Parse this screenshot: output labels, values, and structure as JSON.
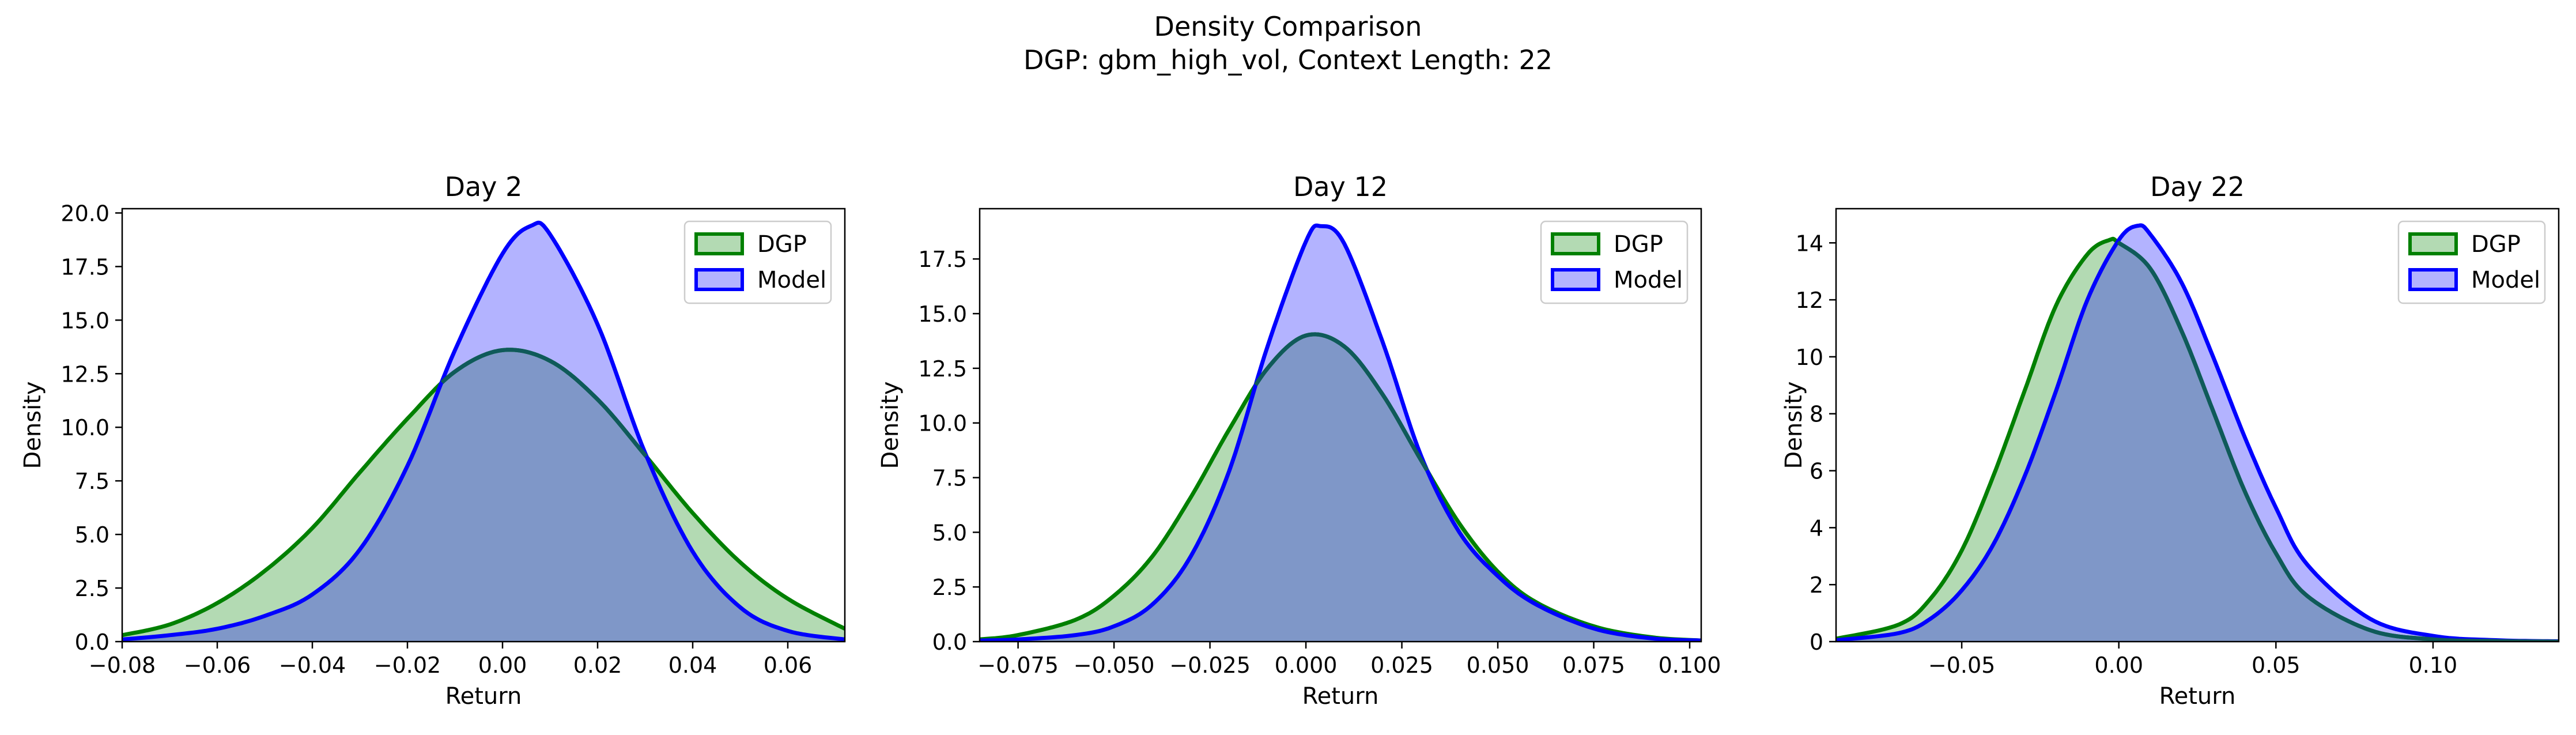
{
  "figure": {
    "title_line1": "Density Comparison",
    "title_line2": "DGP: gbm_high_vol, Context Length: 22"
  },
  "colors": {
    "dgp_line": "#008000",
    "dgp_fill": "#b3dab3",
    "model_line": "#0000ff",
    "model_fill": "#b3b3ff",
    "overlap_fill": "#7f97c8"
  },
  "chart_data": [
    {
      "type": "area",
      "title": "Day 2",
      "xlabel": "Return",
      "ylabel": "Density",
      "xlim": [
        -0.08,
        0.072
      ],
      "ylim": [
        0,
        20.2
      ],
      "xticks": [
        -0.08,
        -0.06,
        -0.04,
        -0.02,
        0.0,
        0.02,
        0.04,
        0.06
      ],
      "xtick_labels": [
        "−0.08",
        "−0.06",
        "−0.04",
        "−0.02",
        "0.00",
        "0.02",
        "0.04",
        "0.06"
      ],
      "yticks": [
        0,
        2.5,
        5,
        7.5,
        10,
        12.5,
        15,
        17.5,
        20
      ],
      "ytick_labels": [
        "0.0",
        "2.5",
        "5.0",
        "7.5",
        "10.0",
        "12.5",
        "15.0",
        "17.5",
        "20.0"
      ],
      "legend": "top-right",
      "series": [
        {
          "name": "DGP",
          "x": [
            -0.08,
            -0.07,
            -0.06,
            -0.05,
            -0.04,
            -0.03,
            -0.02,
            -0.01,
            0.0,
            0.01,
            0.02,
            0.03,
            0.04,
            0.05,
            0.06,
            0.072
          ],
          "y": [
            0.3,
            0.8,
            1.8,
            3.3,
            5.3,
            7.9,
            10.4,
            12.6,
            13.6,
            13.1,
            11.3,
            8.7,
            6.0,
            3.7,
            2.0,
            0.6
          ]
        },
        {
          "name": "Model",
          "x": [
            -0.08,
            -0.07,
            -0.06,
            -0.05,
            -0.04,
            -0.03,
            -0.02,
            -0.01,
            0.0,
            0.006,
            0.01,
            0.02,
            0.03,
            0.04,
            0.05,
            0.06,
            0.072
          ],
          "y": [
            0.1,
            0.3,
            0.6,
            1.2,
            2.2,
            4.3,
            8.2,
            13.6,
            18.1,
            19.4,
            19.0,
            14.8,
            8.8,
            4.2,
            1.6,
            0.5,
            0.1
          ]
        }
      ]
    },
    {
      "type": "area",
      "title": "Day 12",
      "xlabel": "Return",
      "ylabel": "Density",
      "xlim": [
        -0.085,
        0.103
      ],
      "ylim": [
        0,
        19.8
      ],
      "xticks": [
        -0.075,
        -0.05,
        -0.025,
        0.0,
        0.025,
        0.05,
        0.075,
        0.1
      ],
      "xtick_labels": [
        "−0.075",
        "−0.050",
        "−0.025",
        "0.000",
        "0.025",
        "0.050",
        "0.075",
        "0.100"
      ],
      "yticks": [
        0,
        2.5,
        5,
        7.5,
        10,
        12.5,
        15,
        17.5
      ],
      "ytick_labels": [
        "0.0",
        "2.5",
        "5.0",
        "7.5",
        "10.0",
        "12.5",
        "15.0",
        "17.5"
      ],
      "legend": "top-right",
      "series": [
        {
          "name": "DGP",
          "x": [
            -0.085,
            -0.075,
            -0.06,
            -0.05,
            -0.04,
            -0.03,
            -0.02,
            -0.01,
            0.0,
            0.01,
            0.02,
            0.03,
            0.04,
            0.05,
            0.06,
            0.075,
            0.09,
            0.103
          ],
          "y": [
            0.1,
            0.3,
            1.0,
            2.1,
            3.9,
            6.6,
            9.7,
            12.5,
            14.0,
            13.5,
            11.3,
            8.3,
            5.4,
            3.2,
            1.8,
            0.7,
            0.2,
            0.05
          ]
        },
        {
          "name": "Model",
          "x": [
            -0.085,
            -0.075,
            -0.06,
            -0.05,
            -0.04,
            -0.03,
            -0.02,
            -0.01,
            0.0,
            0.004,
            0.01,
            0.02,
            0.03,
            0.04,
            0.05,
            0.06,
            0.075,
            0.09,
            0.103
          ],
          "y": [
            0.05,
            0.1,
            0.3,
            0.7,
            1.7,
            3.9,
            7.8,
            13.5,
            18.3,
            19.0,
            18.2,
            13.7,
            8.5,
            5.0,
            3.0,
            1.7,
            0.6,
            0.15,
            0.05
          ]
        }
      ]
    },
    {
      "type": "area",
      "title": "Day 22",
      "xlabel": "Return",
      "ylabel": "Density",
      "xlim": [
        -0.09,
        0.14
      ],
      "ylim": [
        0,
        15.2
      ],
      "xticks": [
        -0.05,
        0.0,
        0.05,
        0.1
      ],
      "xtick_labels": [
        "−0.05",
        "0.00",
        "0.05",
        "0.10"
      ],
      "yticks": [
        0,
        2,
        4,
        6,
        8,
        10,
        12,
        14
      ],
      "ytick_labels": [
        "0",
        "2",
        "4",
        "6",
        "8",
        "10",
        "12",
        "14"
      ],
      "legend": "top-right",
      "series": [
        {
          "name": "DGP",
          "x": [
            -0.09,
            -0.07,
            -0.06,
            -0.05,
            -0.04,
            -0.03,
            -0.02,
            -0.01,
            -0.003,
            0.0,
            0.01,
            0.02,
            0.03,
            0.04,
            0.05,
            0.06,
            0.08,
            0.1,
            0.12,
            0.14
          ],
          "y": [
            0.1,
            0.6,
            1.5,
            3.2,
            5.8,
            8.8,
            11.8,
            13.6,
            14.1,
            14.0,
            13.1,
            10.9,
            8.1,
            5.3,
            3.1,
            1.6,
            0.4,
            0.08,
            0.02,
            0.0
          ]
        },
        {
          "name": "Model",
          "x": [
            -0.09,
            -0.07,
            -0.06,
            -0.05,
            -0.04,
            -0.03,
            -0.02,
            -0.01,
            0.0,
            0.006,
            0.01,
            0.02,
            0.03,
            0.04,
            0.05,
            0.06,
            0.08,
            0.1,
            0.12,
            0.14
          ],
          "y": [
            0.05,
            0.3,
            0.8,
            1.8,
            3.4,
            5.8,
            8.8,
            12.0,
            14.1,
            14.6,
            14.3,
            12.6,
            10.0,
            7.2,
            4.7,
            2.7,
            0.8,
            0.2,
            0.05,
            0.01
          ]
        }
      ]
    }
  ]
}
